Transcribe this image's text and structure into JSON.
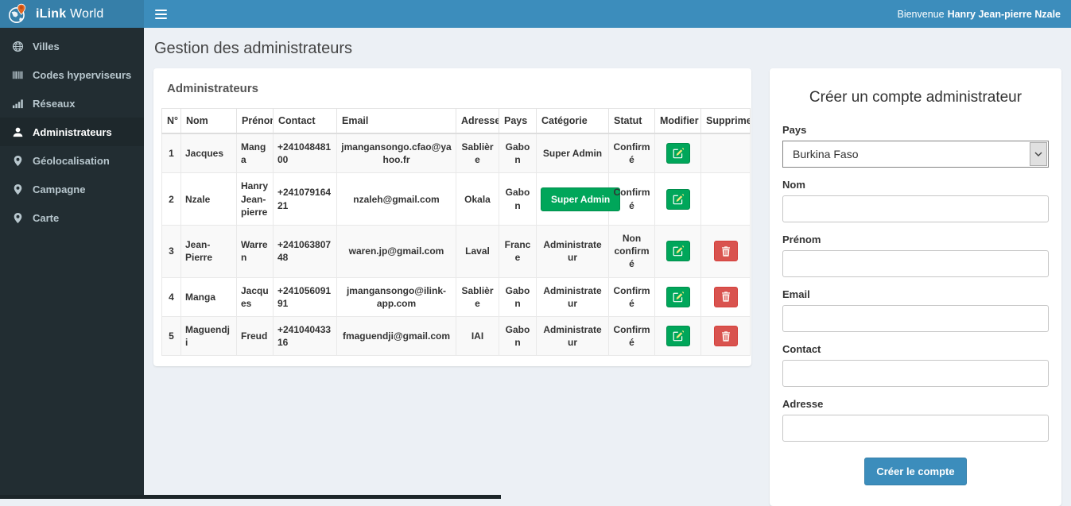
{
  "navbar": {
    "brand": {
      "bold": "iLink",
      "regular": "World"
    },
    "welcome": {
      "prefix": "Bienvenue",
      "name": "Hanry Jean-pierre Nzale"
    }
  },
  "sidebar": {
    "items": [
      {
        "label": "Villes",
        "icon": "globe-icon",
        "active": false
      },
      {
        "label": "Codes hyperviseurs",
        "icon": "barcode-icon",
        "active": false
      },
      {
        "label": "Réseaux",
        "icon": "signal-bars-icon",
        "active": false
      },
      {
        "label": "Administrateurs",
        "icon": "user-icon",
        "active": true
      },
      {
        "label": "Géolocalisation",
        "icon": "map-marker-icon",
        "active": false
      },
      {
        "label": "Campagne",
        "icon": "map-marker-icon",
        "active": false
      },
      {
        "label": "Carte",
        "icon": "map-marker-icon",
        "active": false
      }
    ]
  },
  "page": {
    "title": "Gestion des administrateurs"
  },
  "admins": {
    "panel_title": "Administrateurs",
    "columns": [
      "N°",
      "Nom",
      "Prénom",
      "Contact",
      "Email",
      "Adresse",
      "Pays",
      "Catégorie",
      "Statut",
      "Modifier",
      "Supprimer"
    ],
    "rows": [
      {
        "num": "1",
        "nom": "Jacques",
        "prenom": "Manga",
        "contact": "+24104848100",
        "email": "jmangansongo.cfao@yahoo.fr",
        "adresse": "Sablière",
        "pays": "Gabon",
        "categorie": "Super Admin",
        "categorie_display": "text",
        "statut": "Confirmé",
        "deletable": false
      },
      {
        "num": "2",
        "nom": "Nzale",
        "prenom": "Hanry Jean-pierre",
        "contact": "+24107916421",
        "email": "nzaleh@gmail.com",
        "adresse": "Okala",
        "pays": "Gabon",
        "categorie": "Super Admin",
        "categorie_display": "button",
        "statut": "Confirmé",
        "deletable": false
      },
      {
        "num": "3",
        "nom": "Jean-Pierre",
        "prenom": "Warren",
        "contact": "+24106380748",
        "email": "waren.jp@gmail.com",
        "adresse": "Laval",
        "pays": "France",
        "categorie": "Administrateur",
        "categorie_display": "text",
        "statut": "Non confirmé",
        "deletable": true
      },
      {
        "num": "4",
        "nom": "Manga",
        "prenom": "Jacques",
        "contact": "+24105609191",
        "email": "jmangansongo@ilink-app.com",
        "adresse": "Sablière",
        "pays": "Gabon",
        "categorie": "Administrateur",
        "categorie_display": "text",
        "statut": "Confirmé",
        "deletable": true
      },
      {
        "num": "5",
        "nom": "Maguendji",
        "prenom": "Freud",
        "contact": "+24104043316",
        "email": "fmaguendji@gmail.com",
        "adresse": "IAI",
        "pays": "Gabon",
        "categorie": "Administrateur",
        "categorie_display": "text",
        "statut": "Confirmé",
        "deletable": true
      }
    ]
  },
  "form": {
    "title": "Créer un compte administrateur",
    "fields": [
      {
        "label": "Pays",
        "type": "select",
        "value": "Burkina Faso"
      },
      {
        "label": "Nom",
        "type": "input",
        "value": ""
      },
      {
        "label": "Prénom",
        "type": "input",
        "value": ""
      },
      {
        "label": "Email",
        "type": "input",
        "value": ""
      },
      {
        "label": "Contact",
        "type": "input",
        "value": ""
      },
      {
        "label": "Adresse",
        "type": "input",
        "value": ""
      }
    ],
    "submit_label": "Créer le compte"
  },
  "colors": {
    "navbar": "#3c8dbc",
    "brand_bg": "#367fa9",
    "sidebar": "#222d32",
    "sidebar_active": "#1e282c",
    "content_bg": "#ecf0f5",
    "success": "#00a65a",
    "danger": "#d9534f",
    "primary": "#3c8dbc"
  }
}
